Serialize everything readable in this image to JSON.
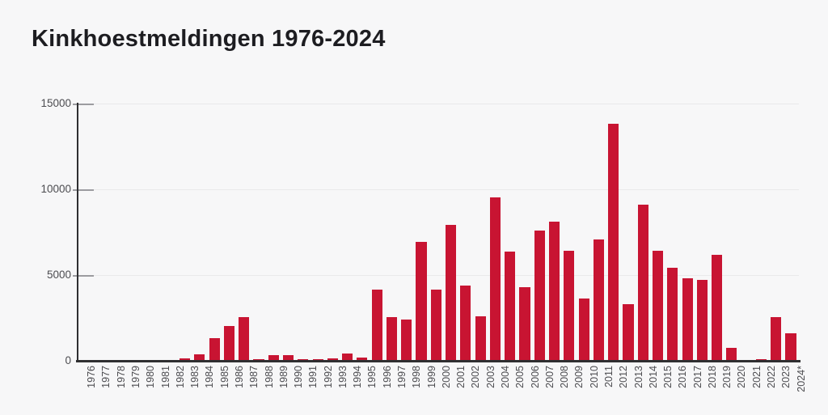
{
  "page": {
    "title": "Kinkhoestmeldingen 1976-2024"
  },
  "chart_data": {
    "type": "bar",
    "title": "Kinkhoestmeldingen 1976-2024",
    "xlabel": "",
    "ylabel": "",
    "ylim": [
      0,
      15000
    ],
    "yticks": [
      0,
      5000,
      10000,
      15000
    ],
    "grid": "horizontal",
    "legend": "none",
    "x_tick_rotation": 90,
    "categories": [
      "1976",
      "1977",
      "1978",
      "1979",
      "1980",
      "1981",
      "1982",
      "1983",
      "1984",
      "1985",
      "1986",
      "1987",
      "1988",
      "1989",
      "1990",
      "1991",
      "1992",
      "1993",
      "1994",
      "1995",
      "1996",
      "1997",
      "1998",
      "1999",
      "2000",
      "2001",
      "2002",
      "2003",
      "2004",
      "2005",
      "2006",
      "2007",
      "2008",
      "2009",
      "2010",
      "2011",
      "2012",
      "2013",
      "2014",
      "2015",
      "2016",
      "2017",
      "2018",
      "2019",
      "2020",
      "2021",
      "2022",
      "2023",
      "2024*"
    ],
    "values": [
      0,
      0,
      0,
      0,
      0,
      0,
      0,
      140,
      380,
      1300,
      2050,
      2550,
      90,
      330,
      310,
      80,
      100,
      150,
      430,
      180,
      4150,
      2550,
      2400,
      6950,
      4150,
      7950,
      4400,
      2600,
      9550,
      6350,
      4300,
      7600,
      8100,
      6400,
      3650,
      7100,
      13800,
      3300,
      9100,
      6400,
      5450,
      4800,
      4700,
      6200,
      750,
      20,
      100,
      2550,
      1600
    ]
  },
  "colors": {
    "bar": "#c81432",
    "background": "#f7f7f8",
    "axis": "#2f2f31",
    "grid": "#e9e9eb",
    "tick": "#9c9ca0",
    "axis_label": "#4c4c50",
    "title": "#1d1d21"
  }
}
